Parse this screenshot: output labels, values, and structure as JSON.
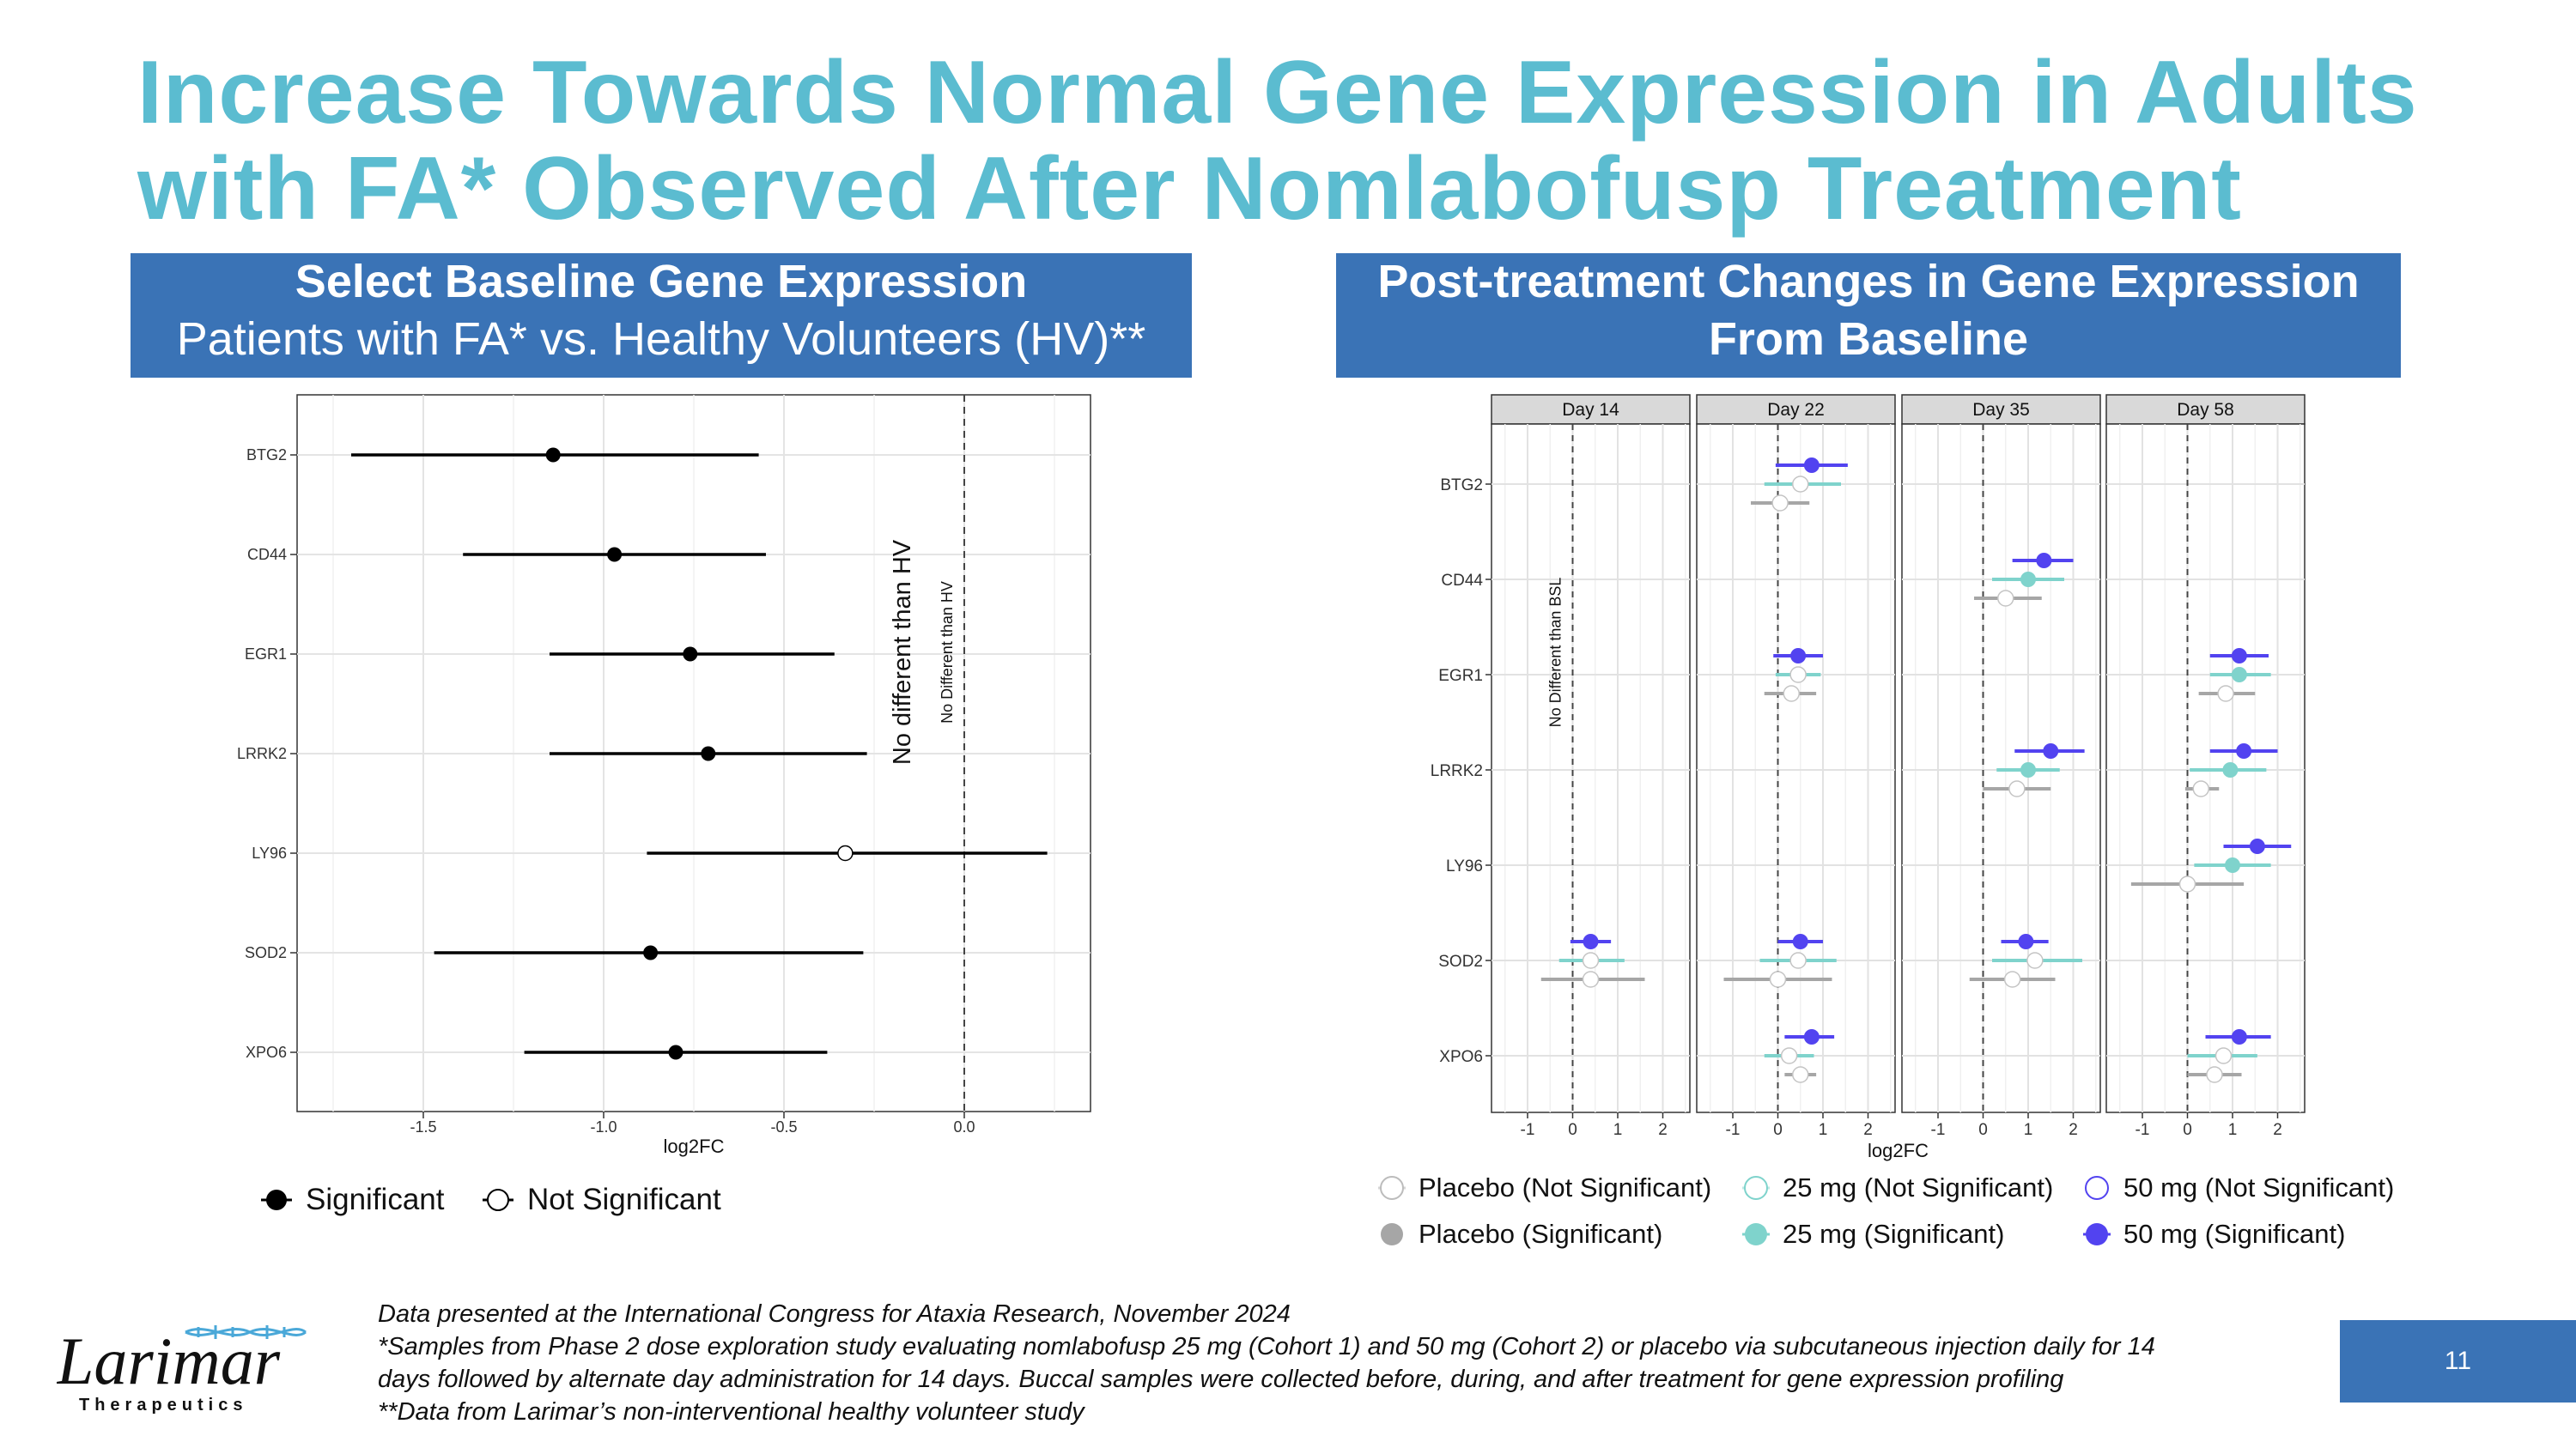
{
  "title": {
    "line1": "Increase Towards Normal Gene Expression in Adults",
    "line2": "with FA* Observed After Nomlabofusp Treatment"
  },
  "left_header": {
    "line1": "Select Baseline Gene Expression",
    "line2": "Patients with FA* vs. Healthy Volunteers (HV)**"
  },
  "right_header": {
    "line1": "Post-treatment Changes in Gene Expression",
    "line2": "From Baseline"
  },
  "left_legend": {
    "significant": "Significant",
    "not_significant": "Not Significant"
  },
  "right_legend": {
    "placebo_ns": "Placebo (Not Significant)",
    "mg25_ns": "25 mg (Not Significant)",
    "mg50_ns": "50 mg (Not Significant)",
    "placebo_s": "Placebo (Significant)",
    "mg25_s": "25 mg (Significant)",
    "mg50_s": "50 mg (Significant)"
  },
  "colors": {
    "placebo": "#a6a6a6",
    "mg25": "#7fd3cc",
    "mg50": "#5243f0",
    "title": "#5bbcd0",
    "header_bg": "#3a73b6"
  },
  "footer": {
    "line1": "Data presented at the International Congress for Ataxia Research, November 2024",
    "line2": "*Samples from Phase 2 dose exploration study evaluating nomlabofusp 25 mg (Cohort 1) and 50 mg (Cohort 2) or placebo via subcutaneous injection daily for 14",
    "line3": "days followed by alternate day administration for 14 days. Buccal samples were collected before, during, and after treatment for gene expression profiling",
    "line4": "**Data from Larimar’s non-interventional healthy volunteer study"
  },
  "logo": {
    "name": "Larimar",
    "sub": "Therapeutics"
  },
  "page_number": "11",
  "chart_data": [
    {
      "type": "forest",
      "title": "Select Baseline Gene Expression",
      "xlabel": "log2FC",
      "xlim": [
        -1.85,
        0.35
      ],
      "xticks": [
        -1.5,
        -1.0,
        -0.5,
        0.0
      ],
      "xtick_labels": [
        "-1.5",
        "-1.0",
        "-0.5",
        "0.0"
      ],
      "reference_x": 0.0,
      "reference_label": "No Different than HV",
      "annotation": "No different than HV",
      "genes": [
        "BTG2",
        "CD44",
        "EGR1",
        "LRRK2",
        "LY96",
        "SOD2",
        "XPO6"
      ],
      "estimates": [
        -1.14,
        -0.97,
        -0.76,
        -0.71,
        -0.33,
        -0.87,
        -0.8
      ],
      "lower": [
        -1.7,
        -1.39,
        -1.15,
        -1.15,
        -0.88,
        -1.47,
        -1.22
      ],
      "upper": [
        -0.57,
        -0.55,
        -0.36,
        -0.27,
        0.23,
        -0.28,
        -0.38
      ],
      "significant": [
        true,
        true,
        true,
        true,
        false,
        true,
        true
      ]
    },
    {
      "type": "forest-faceted",
      "title": "Post-treatment Changes in Gene Expression From Baseline",
      "xlabel": "log2FC",
      "xlim": [
        -1.8,
        2.6
      ],
      "xticks": [
        -1,
        0,
        1,
        2
      ],
      "xtick_labels": [
        "-1",
        "0",
        "1",
        "2"
      ],
      "reference_x": 0,
      "reference_label": "No Different than BSL",
      "genes": [
        "BTG2",
        "CD44",
        "EGR1",
        "LRRK2",
        "LY96",
        "SOD2",
        "XPO6"
      ],
      "panels": [
        {
          "label": "Day 14",
          "points": [
            {
              "gene": "SOD2",
              "group": "50mg",
              "est": 0.4,
              "lo": -0.05,
              "hi": 0.85,
              "sig": true
            },
            {
              "gene": "SOD2",
              "group": "25mg",
              "est": 0.4,
              "lo": -0.3,
              "hi": 1.15,
              "sig": false
            },
            {
              "gene": "SOD2",
              "group": "placebo",
              "est": 0.4,
              "lo": -0.7,
              "hi": 1.6,
              "sig": false
            }
          ]
        },
        {
          "label": "Day 22",
          "points": [
            {
              "gene": "BTG2",
              "group": "50mg",
              "est": 0.75,
              "lo": -0.05,
              "hi": 1.55,
              "sig": true
            },
            {
              "gene": "BTG2",
              "group": "25mg",
              "est": 0.5,
              "lo": -0.3,
              "hi": 1.4,
              "sig": false
            },
            {
              "gene": "BTG2",
              "group": "placebo",
              "est": 0.05,
              "lo": -0.6,
              "hi": 0.7,
              "sig": false
            },
            {
              "gene": "EGR1",
              "group": "50mg",
              "est": 0.45,
              "lo": -0.1,
              "hi": 1.0,
              "sig": true
            },
            {
              "gene": "EGR1",
              "group": "25mg",
              "est": 0.45,
              "lo": -0.05,
              "hi": 0.95,
              "sig": false
            },
            {
              "gene": "EGR1",
              "group": "placebo",
              "est": 0.3,
              "lo": -0.3,
              "hi": 0.85,
              "sig": false
            },
            {
              "gene": "SOD2",
              "group": "50mg",
              "est": 0.5,
              "lo": 0.0,
              "hi": 1.0,
              "sig": true
            },
            {
              "gene": "SOD2",
              "group": "25mg",
              "est": 0.45,
              "lo": -0.4,
              "hi": 1.3,
              "sig": false
            },
            {
              "gene": "SOD2",
              "group": "placebo",
              "est": 0.0,
              "lo": -1.2,
              "hi": 1.2,
              "sig": false
            },
            {
              "gene": "XPO6",
              "group": "50mg",
              "est": 0.75,
              "lo": 0.15,
              "hi": 1.25,
              "sig": true
            },
            {
              "gene": "XPO6",
              "group": "25mg",
              "est": 0.25,
              "lo": -0.3,
              "hi": 0.8,
              "sig": false
            },
            {
              "gene": "XPO6",
              "group": "placebo",
              "est": 0.5,
              "lo": 0.15,
              "hi": 0.85,
              "sig": false
            }
          ]
        },
        {
          "label": "Day 35",
          "points": [
            {
              "gene": "CD44",
              "group": "50mg",
              "est": 1.35,
              "lo": 0.65,
              "hi": 2.0,
              "sig": true
            },
            {
              "gene": "CD44",
              "group": "25mg",
              "est": 1.0,
              "lo": 0.2,
              "hi": 1.8,
              "sig": true
            },
            {
              "gene": "CD44",
              "group": "placebo",
              "est": 0.5,
              "lo": -0.2,
              "hi": 1.3,
              "sig": false
            },
            {
              "gene": "LRRK2",
              "group": "50mg",
              "est": 1.5,
              "lo": 0.7,
              "hi": 2.25,
              "sig": true
            },
            {
              "gene": "LRRK2",
              "group": "25mg",
              "est": 1.0,
              "lo": 0.3,
              "hi": 1.7,
              "sig": true
            },
            {
              "gene": "LRRK2",
              "group": "placebo",
              "est": 0.75,
              "lo": 0.0,
              "hi": 1.5,
              "sig": false
            },
            {
              "gene": "SOD2",
              "group": "50mg",
              "est": 0.95,
              "lo": 0.4,
              "hi": 1.45,
              "sig": true
            },
            {
              "gene": "SOD2",
              "group": "25mg",
              "est": 1.15,
              "lo": 0.2,
              "hi": 2.2,
              "sig": false
            },
            {
              "gene": "SOD2",
              "group": "placebo",
              "est": 0.65,
              "lo": -0.3,
              "hi": 1.6,
              "sig": false
            }
          ]
        },
        {
          "label": "Day 58",
          "points": [
            {
              "gene": "EGR1",
              "group": "50mg",
              "est": 1.15,
              "lo": 0.5,
              "hi": 1.8,
              "sig": true
            },
            {
              "gene": "EGR1",
              "group": "25mg",
              "est": 1.15,
              "lo": 0.5,
              "hi": 1.85,
              "sig": true
            },
            {
              "gene": "EGR1",
              "group": "placebo",
              "est": 0.85,
              "lo": 0.25,
              "hi": 1.5,
              "sig": false
            },
            {
              "gene": "LRRK2",
              "group": "50mg",
              "est": 1.25,
              "lo": 0.5,
              "hi": 2.0,
              "sig": true
            },
            {
              "gene": "LRRK2",
              "group": "25mg",
              "est": 0.95,
              "lo": 0.05,
              "hi": 1.75,
              "sig": true
            },
            {
              "gene": "LRRK2",
              "group": "placebo",
              "est": 0.3,
              "lo": -0.05,
              "hi": 0.7,
              "sig": false
            },
            {
              "gene": "LY96",
              "group": "50mg",
              "est": 1.55,
              "lo": 0.8,
              "hi": 2.3,
              "sig": true
            },
            {
              "gene": "LY96",
              "group": "25mg",
              "est": 1.0,
              "lo": 0.15,
              "hi": 1.85,
              "sig": true
            },
            {
              "gene": "LY96",
              "group": "placebo",
              "est": 0.0,
              "lo": -1.25,
              "hi": 1.25,
              "sig": false
            },
            {
              "gene": "XPO6",
              "group": "50mg",
              "est": 1.15,
              "lo": 0.4,
              "hi": 1.85,
              "sig": true
            },
            {
              "gene": "XPO6",
              "group": "25mg",
              "est": 0.8,
              "lo": 0.0,
              "hi": 1.55,
              "sig": false
            },
            {
              "gene": "XPO6",
              "group": "placebo",
              "est": 0.6,
              "lo": 0.0,
              "hi": 1.2,
              "sig": false
            }
          ]
        }
      ]
    }
  ]
}
